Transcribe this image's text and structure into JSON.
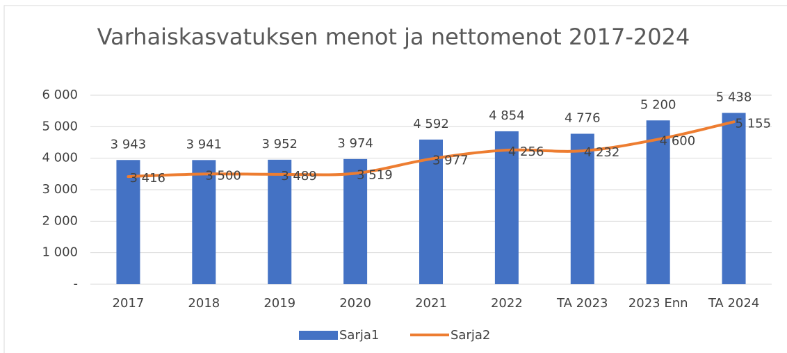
{
  "chart_data": {
    "type": "bar",
    "title": "Varhaiskasvatuksen menot ja nettomenot 2017-2024",
    "categories": [
      "2017",
      "2018",
      "2019",
      "2020",
      "2021",
      "2022",
      "TA 2023",
      "2023 Enn",
      "TA 2024"
    ],
    "series": [
      {
        "name": "Sarja1",
        "type": "bar",
        "color": "#4472c4",
        "values": [
          3943,
          3941,
          3952,
          3974,
          4592,
          4854,
          4776,
          5200,
          5438
        ],
        "value_labels": [
          "3 943",
          "3 941",
          "3 952",
          "3 974",
          "4 592",
          "4 854",
          "4 776",
          "5 200",
          "5 438"
        ]
      },
      {
        "name": "Sarja2",
        "type": "line",
        "color": "#ed7d31",
        "values": [
          3416,
          3500,
          3489,
          3519,
          3977,
          4256,
          4232,
          4600,
          5155
        ],
        "value_labels": [
          "3 416",
          "3 500",
          "3 489",
          "3 519",
          "3 977",
          "4 256",
          "4 232",
          "4 600",
          "5 155"
        ]
      }
    ],
    "ylim": [
      0,
      6000
    ],
    "yticks": [
      {
        "value": 0,
        "label": "-"
      },
      {
        "value": 1000,
        "label": "1 000"
      },
      {
        "value": 2000,
        "label": "2 000"
      },
      {
        "value": 3000,
        "label": "3 000"
      },
      {
        "value": 4000,
        "label": "4 000"
      },
      {
        "value": 5000,
        "label": "5 000"
      },
      {
        "value": 6000,
        "label": "6 000"
      }
    ],
    "grid": true,
    "legend": "bottom"
  }
}
